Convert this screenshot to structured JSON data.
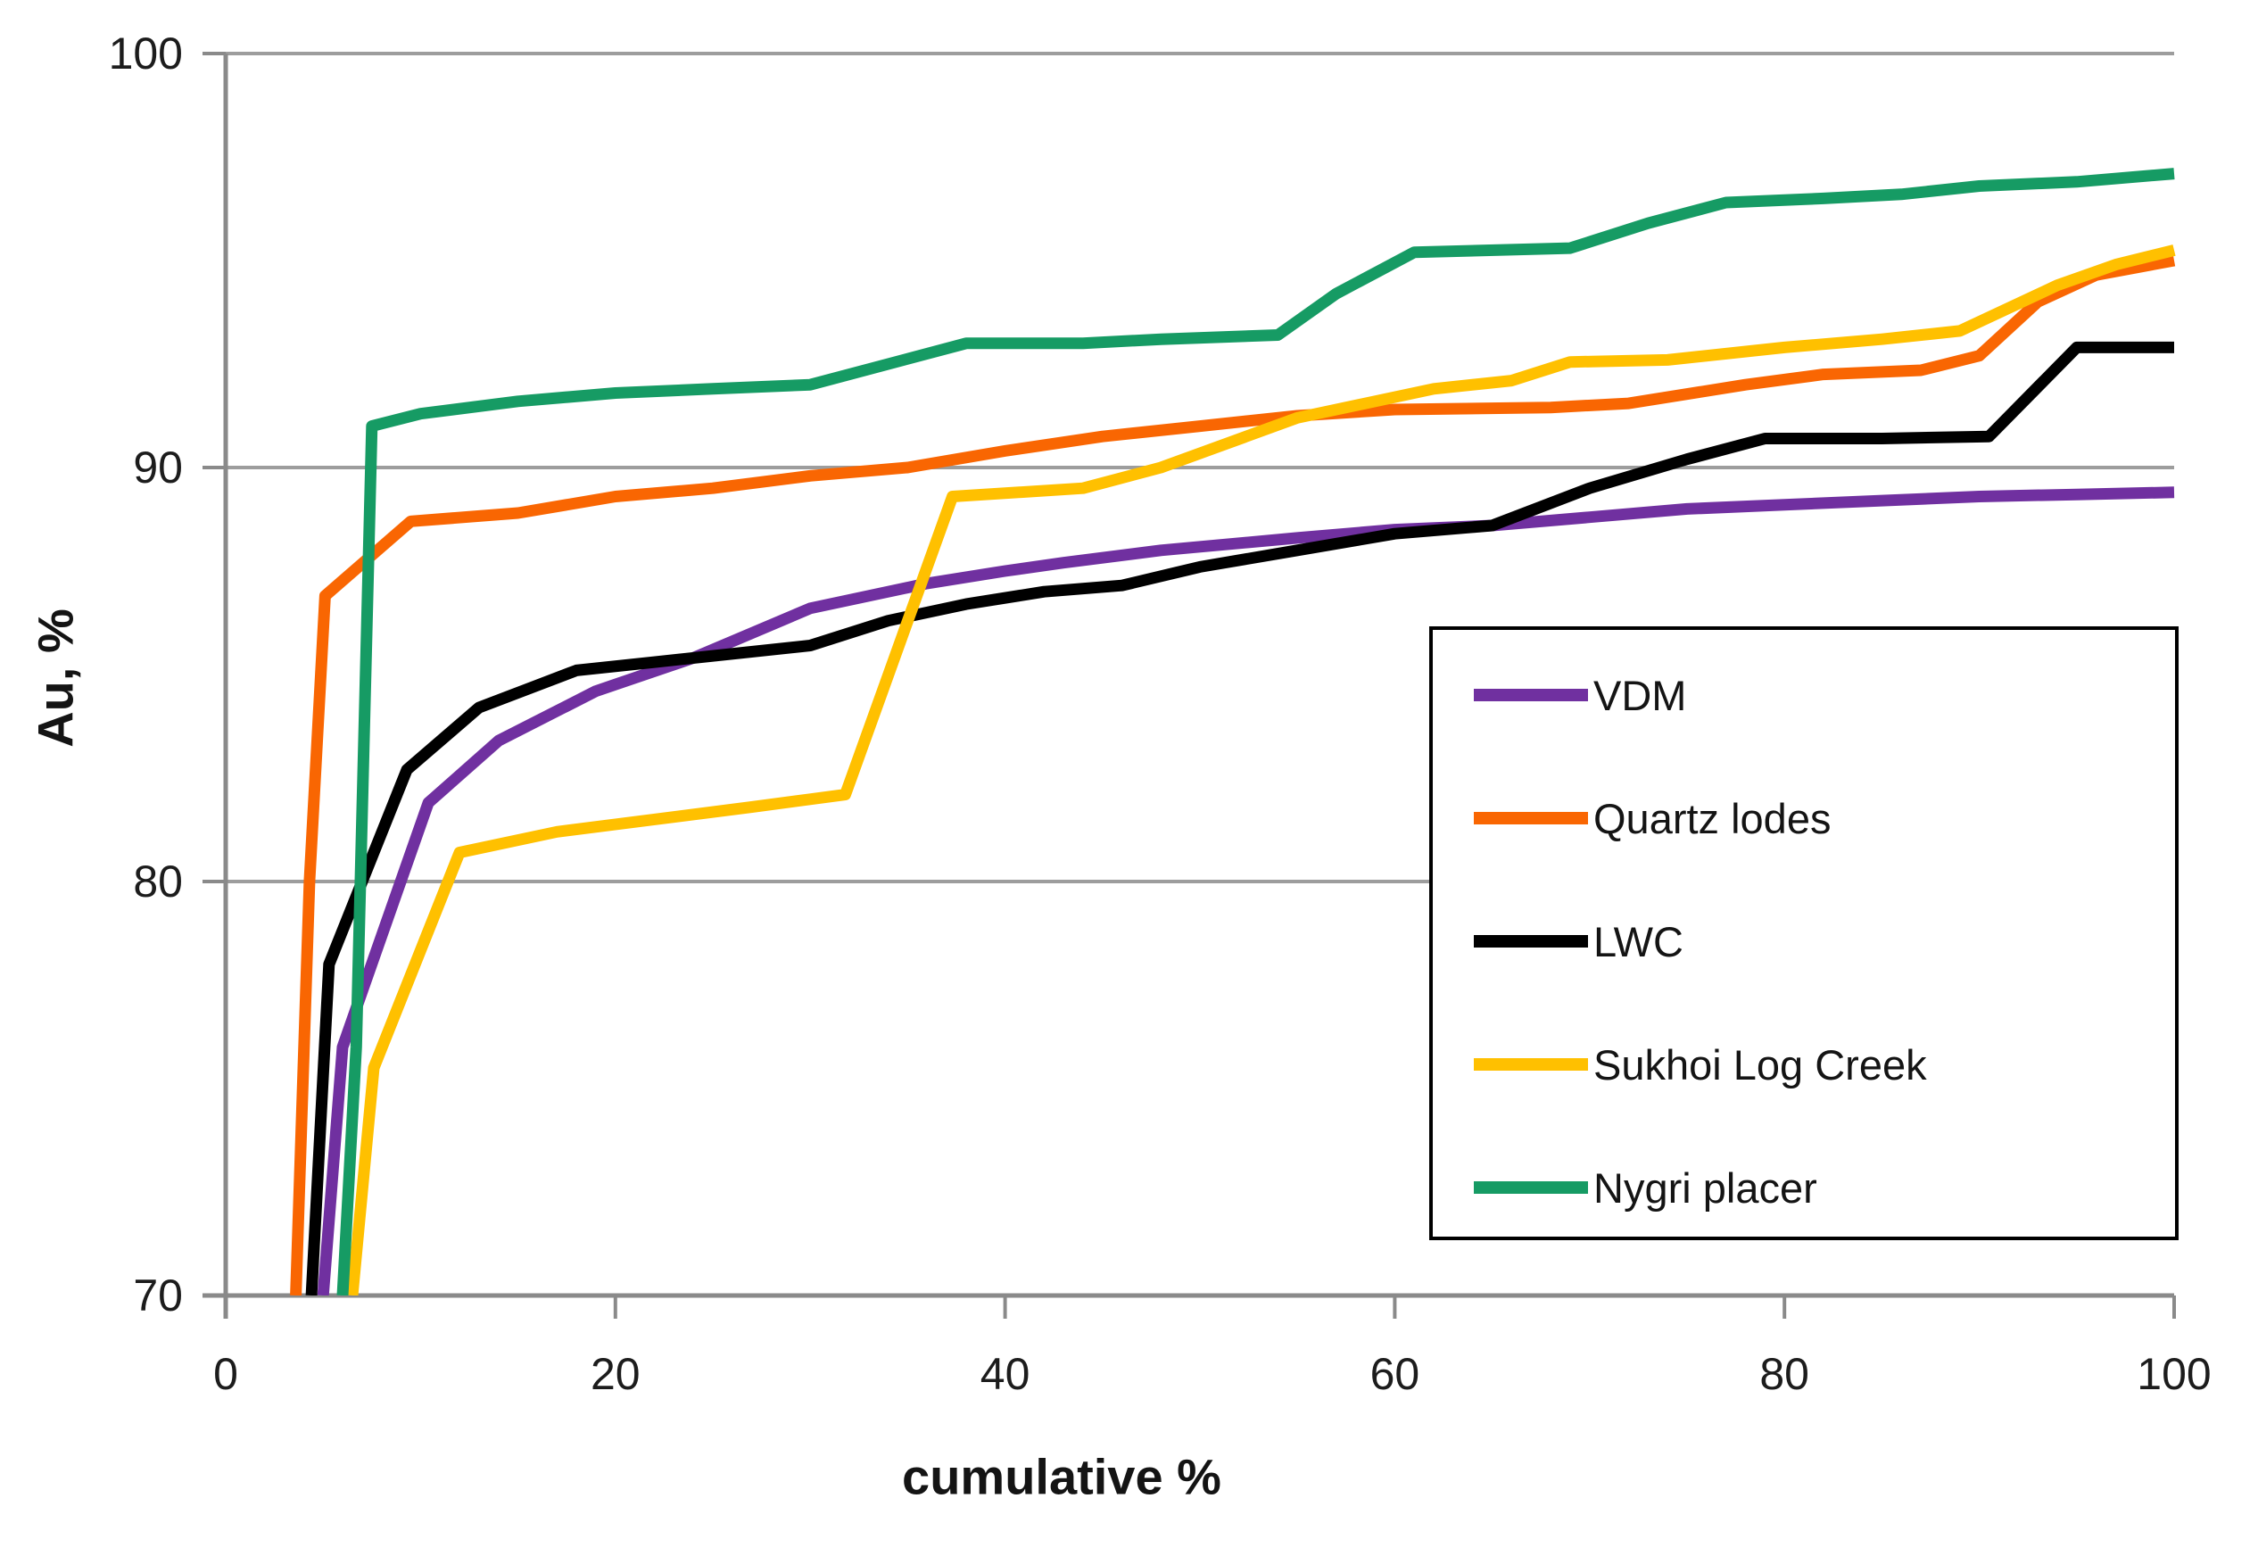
{
  "chart_data": {
    "type": "line",
    "title": "",
    "xlabel": "cumulative %",
    "ylabel": "Au, %",
    "xlim": [
      0,
      100
    ],
    "ylim": [
      70,
      100
    ],
    "xticks": [
      0,
      20,
      40,
      60,
      80,
      100
    ],
    "yticks": [
      70,
      80,
      90,
      100
    ],
    "grid_y": [
      80,
      90,
      100
    ],
    "grid": "horizontal-only",
    "legend_position": "inside-right",
    "series": [
      {
        "name": "VDM",
        "color": "#7030A0",
        "points": [
          [
            5,
            70
          ],
          [
            6,
            76
          ],
          [
            10.4,
            81.9
          ],
          [
            14,
            83.4
          ],
          [
            19,
            84.6
          ],
          [
            24,
            85.4
          ],
          [
            30,
            86.6
          ],
          [
            36,
            87.2
          ],
          [
            40,
            87.5
          ],
          [
            43,
            87.7
          ],
          [
            48,
            88.0
          ],
          [
            55,
            88.3
          ],
          [
            60,
            88.5
          ],
          [
            65,
            88.6
          ],
          [
            70,
            88.8
          ],
          [
            75,
            89.0
          ],
          [
            80,
            89.1
          ],
          [
            85,
            89.2
          ],
          [
            90,
            89.3
          ],
          [
            95,
            89.35
          ],
          [
            100,
            89.4
          ]
        ]
      },
      {
        "name": "Quartz lodes",
        "color": "#F96602",
        "points": [
          [
            3.6,
            70
          ],
          [
            4.3,
            80
          ],
          [
            5.1,
            86.9
          ],
          [
            9.5,
            88.7
          ],
          [
            15,
            88.9
          ],
          [
            20,
            89.3
          ],
          [
            25,
            89.5
          ],
          [
            30,
            89.8
          ],
          [
            35,
            90.0
          ],
          [
            40,
            90.4
          ],
          [
            45,
            90.75
          ],
          [
            50,
            91.0
          ],
          [
            55,
            91.25
          ],
          [
            60,
            91.4
          ],
          [
            68,
            91.45
          ],
          [
            72,
            91.55
          ],
          [
            78,
            92.0
          ],
          [
            82,
            92.25
          ],
          [
            87,
            92.35
          ],
          [
            90,
            92.7
          ],
          [
            93,
            94.0
          ],
          [
            96,
            94.65
          ],
          [
            100,
            95.0
          ]
        ]
      },
      {
        "name": "LWC",
        "color": "#000000",
        "points": [
          [
            4.4,
            70
          ],
          [
            5.3,
            78
          ],
          [
            9.3,
            82.7
          ],
          [
            13,
            84.2
          ],
          [
            18,
            85.1
          ],
          [
            22,
            85.3
          ],
          [
            25,
            85.45
          ],
          [
            30,
            85.7
          ],
          [
            34,
            86.3
          ],
          [
            38,
            86.7
          ],
          [
            42,
            87.0
          ],
          [
            46,
            87.15
          ],
          [
            50,
            87.6
          ],
          [
            55,
            88.0
          ],
          [
            60,
            88.4
          ],
          [
            65,
            88.6
          ],
          [
            70,
            89.5
          ],
          [
            75,
            90.2
          ],
          [
            79,
            90.7
          ],
          [
            85,
            90.7
          ],
          [
            90.5,
            90.75
          ],
          [
            95,
            92.9
          ],
          [
            100,
            92.9
          ]
        ]
      },
      {
        "name": "Sukhoi Log Creek",
        "color": "#FFC000",
        "points": [
          [
            6.5,
            70
          ],
          [
            7.6,
            75.5
          ],
          [
            12,
            80.7
          ],
          [
            17,
            81.2
          ],
          [
            22,
            81.5
          ],
          [
            27,
            81.8
          ],
          [
            31.8,
            82.1
          ],
          [
            37.3,
            89.3
          ],
          [
            44,
            89.5
          ],
          [
            48,
            90.0
          ],
          [
            55,
            91.2
          ],
          [
            62,
            91.9
          ],
          [
            66,
            92.1
          ],
          [
            69,
            92.55
          ],
          [
            74,
            92.6
          ],
          [
            80,
            92.9
          ],
          [
            85,
            93.1
          ],
          [
            89,
            93.3
          ],
          [
            94,
            94.4
          ],
          [
            97,
            94.9
          ],
          [
            100,
            95.25
          ]
        ]
      },
      {
        "name": "Nygri placer",
        "color": "#169B64",
        "points": [
          [
            6,
            70
          ],
          [
            6.7,
            76
          ],
          [
            7.5,
            91.0
          ],
          [
            10,
            91.3
          ],
          [
            15,
            91.6
          ],
          [
            20,
            91.8
          ],
          [
            25,
            91.9
          ],
          [
            30,
            92.0
          ],
          [
            34,
            92.5
          ],
          [
            38,
            93.0
          ],
          [
            44,
            93.0
          ],
          [
            48,
            93.1
          ],
          [
            54,
            93.2
          ],
          [
            57,
            94.2
          ],
          [
            61,
            95.2
          ],
          [
            69,
            95.3
          ],
          [
            73,
            95.9
          ],
          [
            77,
            96.4
          ],
          [
            82,
            96.5
          ],
          [
            86,
            96.6
          ],
          [
            90,
            96.8
          ],
          [
            95,
            96.9
          ],
          [
            100,
            97.1
          ]
        ]
      }
    ]
  },
  "legend": {
    "entries": [
      "VDM",
      "Quartz lodes",
      "LWC",
      "Sukhoi Log Creek",
      "Nygri placer"
    ]
  },
  "colors": {
    "background": "#FFFFFF",
    "axis": "#8A8A8A",
    "grid": "#9D9D9D",
    "text": "#1C1C1C"
  }
}
